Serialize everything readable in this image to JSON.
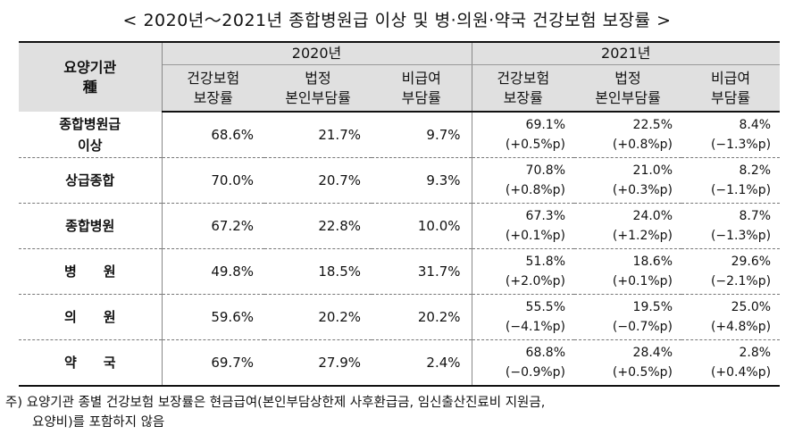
{
  "title": "< 2020년～2021년 종합병원급 이상 및 병·의원·약국 건강보험 보장률 >",
  "header": {
    "corner_line1": "요양기관",
    "corner_line2": "種",
    "year_2020": "2020년",
    "year_2021": "2021년",
    "col_coverage": [
      "건강보험",
      "보장률"
    ],
    "col_copay": [
      "법정",
      "본인부담률"
    ],
    "col_noncovered": [
      "비급여",
      "부담률"
    ]
  },
  "rows": [
    {
      "label": [
        "종합병원급",
        "이상"
      ],
      "y2020": [
        "68.6%",
        "21.7%",
        "9.7%"
      ],
      "y2021": [
        "69.1%",
        "22.5%",
        "8.4%"
      ],
      "diff": [
        "(+0.5%p)",
        "(+0.8%p)",
        "(−1.3%p)"
      ]
    },
    {
      "label": [
        "상급종합",
        ""
      ],
      "y2020": [
        "70.0%",
        "20.7%",
        "9.3%"
      ],
      "y2021": [
        "70.8%",
        "21.0%",
        "8.2%"
      ],
      "diff": [
        "(+0.8%p)",
        "(+0.3%p)",
        "(−1.1%p)"
      ]
    },
    {
      "label": [
        "종합병원",
        ""
      ],
      "y2020": [
        "67.2%",
        "22.8%",
        "10.0%"
      ],
      "y2021": [
        "67.3%",
        "24.0%",
        "8.7%"
      ],
      "diff": [
        "(+0.1%p)",
        "(+1.2%p)",
        "(−1.3%p)"
      ]
    },
    {
      "label": [
        "병　　원",
        ""
      ],
      "y2020": [
        "49.8%",
        "18.5%",
        "31.7%"
      ],
      "y2021": [
        "51.8%",
        "18.6%",
        "29.6%"
      ],
      "diff": [
        "(+2.0%p)",
        "(+0.1%p)",
        "(−2.1%p)"
      ]
    },
    {
      "label": [
        "의　　원",
        ""
      ],
      "y2020": [
        "59.6%",
        "20.2%",
        "20.2%"
      ],
      "y2021": [
        "55.5%",
        "19.5%",
        "25.0%"
      ],
      "diff": [
        "(−4.1%p)",
        "(−0.7%p)",
        "(+4.8%p)"
      ]
    },
    {
      "label": [
        "약　　국",
        ""
      ],
      "y2020": [
        "69.7%",
        "27.9%",
        "2.4%"
      ],
      "y2021": [
        "68.8%",
        "28.4%",
        "2.8%"
      ],
      "diff": [
        "(−0.9%p)",
        "(+0.5%p)",
        "(+0.4%p)"
      ]
    }
  ],
  "note": {
    "line1": "주) 요양기관 종별 건강보험 보장률은 현금급여(본인부담상한제 사후환급금, 임신출산진료비 지원금,",
    "line2": "요양비)를 포함하지 않음"
  }
}
